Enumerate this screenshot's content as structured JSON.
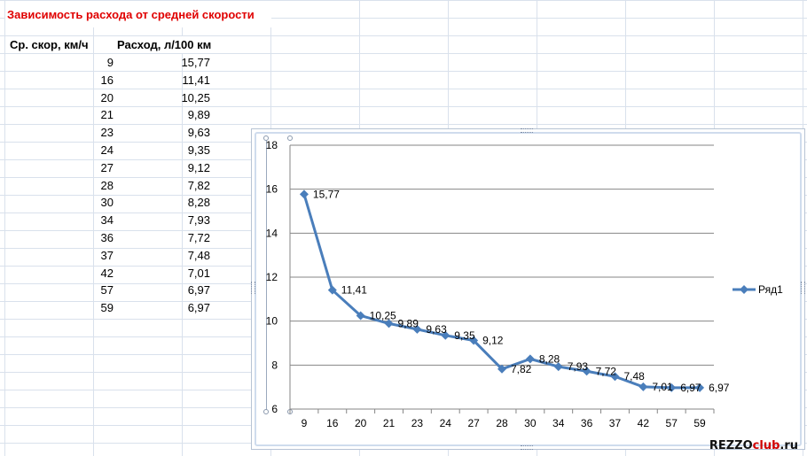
{
  "sheet": {
    "title": "Зависимость расхода от средней скорости",
    "col_a_header": "Ср. скор, км/ч",
    "col_b_header": "Расход, л/100 км",
    "rows": [
      {
        "speed": "9",
        "consumption": "15,77"
      },
      {
        "speed": "16",
        "consumption": "11,41"
      },
      {
        "speed": "20",
        "consumption": "10,25"
      },
      {
        "speed": "21",
        "consumption": "9,89"
      },
      {
        "speed": "23",
        "consumption": "9,63"
      },
      {
        "speed": "24",
        "consumption": "9,35"
      },
      {
        "speed": "27",
        "consumption": "9,12"
      },
      {
        "speed": "28",
        "consumption": "7,82"
      },
      {
        "speed": "30",
        "consumption": "8,28"
      },
      {
        "speed": "34",
        "consumption": "7,93"
      },
      {
        "speed": "36",
        "consumption": "7,72"
      },
      {
        "speed": "37",
        "consumption": "7,48"
      },
      {
        "speed": "42",
        "consumption": "7,01"
      },
      {
        "speed": "57",
        "consumption": "6,97"
      },
      {
        "speed": "59",
        "consumption": "6,97"
      }
    ]
  },
  "watermark": {
    "prefix": "REZZO",
    "accent": "club",
    "suffix": ".ru"
  },
  "chart_data": {
    "type": "line",
    "categories": [
      "9",
      "16",
      "20",
      "21",
      "23",
      "24",
      "27",
      "28",
      "30",
      "34",
      "36",
      "37",
      "42",
      "57",
      "59"
    ],
    "series": [
      {
        "name": "Ряд1",
        "values": [
          15.77,
          11.41,
          10.25,
          9.89,
          9.63,
          9.35,
          9.12,
          7.82,
          8.28,
          7.93,
          7.72,
          7.48,
          7.01,
          6.97,
          6.97
        ],
        "labels": [
          "15,77",
          "11,41",
          "10,25",
          "9,89",
          "9,63",
          "9,35",
          "9,12",
          "7,82",
          "8,28",
          "7,93",
          "7,72",
          "7,48",
          "7,01",
          "6,97",
          "6,97"
        ],
        "color": "#4a7ebb"
      }
    ],
    "ylim": [
      6,
      18
    ],
    "yticks": [
      "6",
      "8",
      "10",
      "12",
      "14",
      "16",
      "18"
    ],
    "grid": true,
    "legend": "right",
    "title": "",
    "xlabel": "",
    "ylabel": ""
  }
}
